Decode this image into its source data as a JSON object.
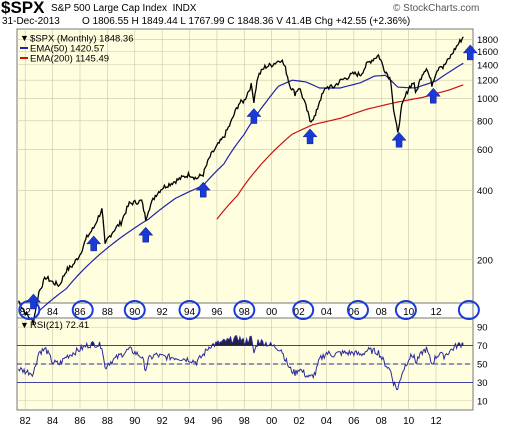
{
  "header": {
    "ticker": "$SPX",
    "name": "S&P 500 Large Cap Index",
    "exchange": "INDX",
    "date": "31-Dec-2013",
    "ohlc": "O 1806.55  H 1849.44  L 1767.99  C 1848.36  V 41.4B  Chg +42.55 (+2.36%)",
    "watermark": "© StockCharts.com"
  },
  "colors": {
    "panel_bg": "#ffffe0",
    "price_line": "#000000",
    "ema50": "#2222aa",
    "ema200": "#cc1111",
    "rsi_line": "#2a2a9a",
    "arrow": "#1a3ad8",
    "circle": "#1a3ad8"
  },
  "chart_data": [
    {
      "type": "line",
      "scale": "log",
      "legend": [
        {
          "label": "$SPX (Monthly) 1848.36",
          "color": "#000000"
        },
        {
          "label": "EMA(50) 1420.57",
          "color": "#2222aa"
        },
        {
          "label": "EMA(200) 1145.49",
          "color": "#cc1111"
        }
      ],
      "legend_position": "top-left",
      "y_ticks": [
        200,
        400,
        600,
        800,
        1000,
        1200,
        1400,
        1600,
        1800
      ],
      "ylim": [
        130,
        2000
      ],
      "x_tick_labels": [
        "82",
        "84",
        "86",
        "88",
        "90",
        "92",
        "94",
        "96",
        "98",
        "00",
        "02",
        "04",
        "06",
        "08",
        "10",
        "12"
      ],
      "x_tick_years": [
        1982,
        1984,
        1986,
        1988,
        1990,
        1992,
        1994,
        1996,
        1998,
        2000,
        2002,
        2004,
        2006,
        2008,
        2010,
        2012
      ],
      "xlim": [
        1981.4,
        2014.7
      ],
      "grid": true,
      "series": [
        {
          "name": "$SPX (Monthly)",
          "color": "#000000",
          "points": [
            [
              1981.5,
              133
            ],
            [
              1982.0,
              118
            ],
            [
              1982.6,
              107
            ],
            [
              1983.0,
              145
            ],
            [
              1983.5,
              168
            ],
            [
              1984.0,
              160
            ],
            [
              1984.5,
              155
            ],
            [
              1985.0,
              180
            ],
            [
              1985.5,
              190
            ],
            [
              1986.0,
              211
            ],
            [
              1986.5,
              250
            ],
            [
              1987.0,
              275
            ],
            [
              1987.6,
              330
            ],
            [
              1987.83,
              230
            ],
            [
              1988.0,
              245
            ],
            [
              1988.5,
              270
            ],
            [
              1989.0,
              290
            ],
            [
              1989.6,
              350
            ],
            [
              1990.5,
              360
            ],
            [
              1990.8,
              300
            ],
            [
              1991.0,
              330
            ],
            [
              1991.5,
              380
            ],
            [
              1992.0,
              410
            ],
            [
              1993.0,
              440
            ],
            [
              1994.0,
              470
            ],
            [
              1994.5,
              450
            ],
            [
              1995.0,
              470
            ],
            [
              1995.5,
              560
            ],
            [
              1996.0,
              620
            ],
            [
              1996.5,
              680
            ],
            [
              1997.0,
              780
            ],
            [
              1997.6,
              950
            ],
            [
              1998.0,
              980
            ],
            [
              1998.5,
              1140
            ],
            [
              1998.7,
              980
            ],
            [
              1999.0,
              1250
            ],
            [
              1999.5,
              1370
            ],
            [
              2000.0,
              1400
            ],
            [
              2000.7,
              1480
            ],
            [
              2001.0,
              1350
            ],
            [
              2001.3,
              1150
            ],
            [
              2001.7,
              1050
            ],
            [
              2002.0,
              1120
            ],
            [
              2002.5,
              920
            ],
            [
              2002.8,
              800
            ],
            [
              2003.2,
              840
            ],
            [
              2003.5,
              980
            ],
            [
              2004.0,
              1120
            ],
            [
              2004.5,
              1120
            ],
            [
              2005.0,
              1190
            ],
            [
              2006.0,
              1280
            ],
            [
              2006.5,
              1270
            ],
            [
              2007.0,
              1420
            ],
            [
              2007.8,
              1540
            ],
            [
              2008.2,
              1350
            ],
            [
              2008.7,
              1200
            ],
            [
              2008.9,
              900
            ],
            [
              2009.2,
              700
            ],
            [
              2009.5,
              920
            ],
            [
              2010.0,
              1110
            ],
            [
              2010.4,
              1180
            ],
            [
              2010.5,
              1040
            ],
            [
              2011.0,
              1280
            ],
            [
              2011.3,
              1360
            ],
            [
              2011.7,
              1150
            ],
            [
              2012.0,
              1300
            ],
            [
              2012.3,
              1400
            ],
            [
              2012.5,
              1360
            ],
            [
              2013.0,
              1500
            ],
            [
              2013.5,
              1680
            ],
            [
              2013.99,
              1848.36
            ]
          ]
        },
        {
          "name": "EMA(50)",
          "color": "#2222aa",
          "points": [
            [
              1983.0,
              120
            ],
            [
              1985.0,
              150
            ],
            [
              1987.0,
              200
            ],
            [
              1989.0,
              250
            ],
            [
              1991.0,
              300
            ],
            [
              1993.0,
              370
            ],
            [
              1995.0,
              420
            ],
            [
              1996.5,
              520
            ],
            [
              1998.0,
              700
            ],
            [
              1999.5,
              950
            ],
            [
              2000.5,
              1130
            ],
            [
              2001.5,
              1200
            ],
            [
              2002.5,
              1180
            ],
            [
              2003.5,
              1110
            ],
            [
              2005.0,
              1110
            ],
            [
              2006.5,
              1170
            ],
            [
              2007.5,
              1250
            ],
            [
              2008.3,
              1260
            ],
            [
              2009.2,
              1120
            ],
            [
              2010.5,
              1110
            ],
            [
              2012.0,
              1190
            ],
            [
              2013.99,
              1420.57
            ]
          ]
        },
        {
          "name": "EMA(200)",
          "color": "#cc1111",
          "points": [
            [
              1996.0,
              300
            ],
            [
              1997.5,
              380
            ],
            [
              1999.0,
              500
            ],
            [
              2000.5,
              620
            ],
            [
              2001.5,
              700
            ],
            [
              2003.0,
              770
            ],
            [
              2005.0,
              820
            ],
            [
              2007.0,
              900
            ],
            [
              2009.0,
              960
            ],
            [
              2011.0,
              1010
            ],
            [
              2013.0,
              1090
            ],
            [
              2013.99,
              1145.49
            ]
          ]
        }
      ],
      "annotations": {
        "arrow_years": [
          1982.6,
          1987.0,
          1990.8,
          1995.0,
          1998.7,
          2002.8,
          2009.3,
          2011.8,
          2014.5
        ],
        "circle_years": [
          1982.3,
          1986.2,
          1990.0,
          1994.0,
          1998.0,
          2002.3,
          2006.3,
          2009.8,
          2014.4
        ]
      }
    },
    {
      "type": "line",
      "legend": [
        {
          "label": "RSI(21) 72.41",
          "color": "#2a2a9a"
        }
      ],
      "y_ticks": [
        10,
        30,
        50,
        70,
        90
      ],
      "ylim": [
        0,
        100
      ],
      "levels": [
        30,
        50,
        70
      ],
      "x_tick_labels": [
        "82",
        "84",
        "86",
        "88",
        "90",
        "92",
        "94",
        "96",
        "98",
        "00",
        "02",
        "04",
        "06",
        "08",
        "10",
        "12"
      ],
      "x_tick_years": [
        1982,
        1984,
        1986,
        1988,
        1990,
        1992,
        1994,
        1996,
        1998,
        2000,
        2002,
        2004,
        2006,
        2008,
        2010,
        2012
      ],
      "xlim": [
        1981.4,
        2014.7
      ],
      "series": [
        {
          "name": "RSI(21)",
          "color": "#2a2a9a",
          "points": [
            [
              1981.5,
              45
            ],
            [
              1982.0,
              42
            ],
            [
              1982.6,
              40
            ],
            [
              1983.0,
              63
            ],
            [
              1983.5,
              66
            ],
            [
              1984.0,
              52
            ],
            [
              1984.5,
              50
            ],
            [
              1985.0,
              58
            ],
            [
              1985.5,
              62
            ],
            [
              1986.0,
              66
            ],
            [
              1986.5,
              70
            ],
            [
              1987.0,
              72
            ],
            [
              1987.6,
              70
            ],
            [
              1987.83,
              45
            ],
            [
              1988.0,
              50
            ],
            [
              1988.5,
              55
            ],
            [
              1989.0,
              60
            ],
            [
              1989.6,
              66
            ],
            [
              1990.5,
              58
            ],
            [
              1990.8,
              44
            ],
            [
              1991.0,
              55
            ],
            [
              1991.5,
              60
            ],
            [
              1992.0,
              58
            ],
            [
              1993.0,
              57
            ],
            [
              1994.0,
              55
            ],
            [
              1994.5,
              52
            ],
            [
              1995.0,
              60
            ],
            [
              1995.5,
              70
            ],
            [
              1996.0,
              72
            ],
            [
              1996.5,
              74
            ],
            [
              1997.0,
              76
            ],
            [
              1997.6,
              78
            ],
            [
              1998.0,
              74
            ],
            [
              1998.5,
              78
            ],
            [
              1998.7,
              62
            ],
            [
              1999.0,
              75
            ],
            [
              1999.5,
              73
            ],
            [
              2000.0,
              70
            ],
            [
              2000.7,
              66
            ],
            [
              2001.0,
              55
            ],
            [
              2001.3,
              45
            ],
            [
              2001.7,
              40
            ],
            [
              2002.0,
              45
            ],
            [
              2002.5,
              38
            ],
            [
              2002.8,
              35
            ],
            [
              2003.2,
              40
            ],
            [
              2003.5,
              55
            ],
            [
              2004.0,
              62
            ],
            [
              2004.5,
              60
            ],
            [
              2005.0,
              62
            ],
            [
              2006.0,
              62
            ],
            [
              2006.5,
              60
            ],
            [
              2007.0,
              65
            ],
            [
              2007.8,
              63
            ],
            [
              2008.2,
              52
            ],
            [
              2008.7,
              42
            ],
            [
              2008.9,
              30
            ],
            [
              2009.2,
              22
            ],
            [
              2009.5,
              40
            ],
            [
              2010.0,
              56
            ],
            [
              2010.4,
              60
            ],
            [
              2010.5,
              50
            ],
            [
              2011.0,
              63
            ],
            [
              2011.3,
              66
            ],
            [
              2011.7,
              50
            ],
            [
              2012.0,
              58
            ],
            [
              2012.3,
              62
            ],
            [
              2012.5,
              58
            ],
            [
              2013.0,
              64
            ],
            [
              2013.5,
              70
            ],
            [
              2013.99,
              72.41
            ]
          ]
        }
      ]
    }
  ]
}
